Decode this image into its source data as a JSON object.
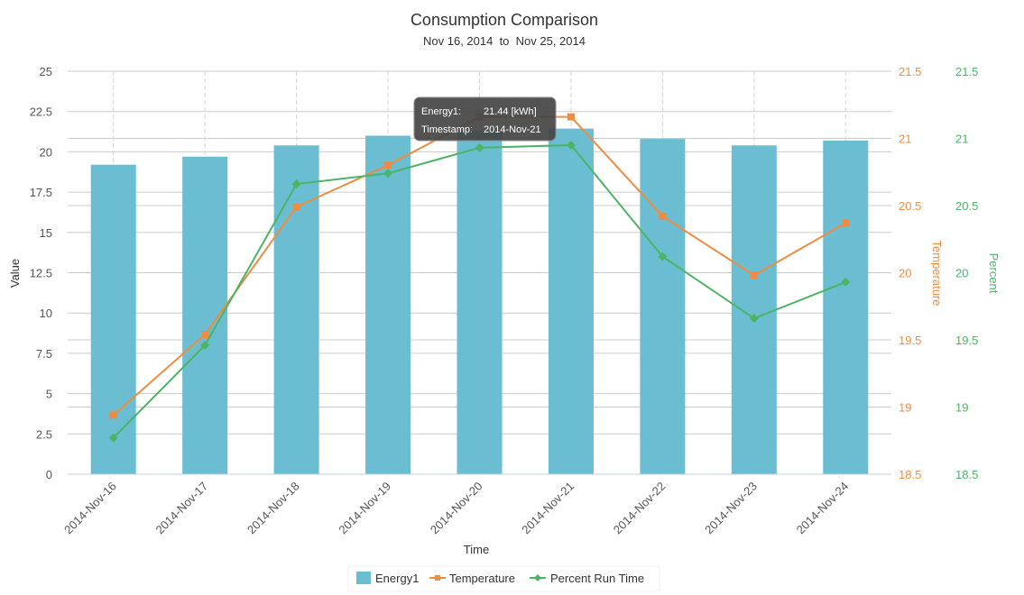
{
  "chart_data": {
    "type": "bar",
    "title": "Consumption Comparison",
    "subtitle": "Nov 16, 2014  to  Nov 25, 2014",
    "xlabel": "Time",
    "ylabel": "Value",
    "y2label": "Temperature",
    "y3label": "Percent",
    "categories": [
      "2014-Nov-16",
      "2014-Nov-17",
      "2014-Nov-18",
      "2014-Nov-19",
      "2014-Nov-20",
      "2014-Nov-21",
      "2014-Nov-22",
      "2014-Nov-23",
      "2014-Nov-24"
    ],
    "ylim": [
      0,
      25
    ],
    "y_ticks": [
      "0",
      "2.5",
      "5",
      "7.5",
      "10",
      "12.5",
      "15",
      "17.5",
      "20",
      "22.5",
      "25"
    ],
    "y2lim": [
      18.5,
      21.5
    ],
    "y2_ticks": [
      "18.5",
      "19",
      "19.5",
      "20",
      "20.5",
      "21",
      "21.5"
    ],
    "y3lim": [
      18.5,
      21.5
    ],
    "y3_ticks": [
      "18.5",
      "19",
      "19.5",
      "20",
      "20.5",
      "21",
      "21.5"
    ],
    "series": [
      {
        "name": "Energy1",
        "type": "bar",
        "axis": "left",
        "color": "#6bbdd2",
        "values": [
          19.2,
          19.7,
          20.4,
          21.0,
          21.3,
          21.44,
          20.8,
          20.4,
          20.7
        ]
      },
      {
        "name": "Temperature",
        "type": "line",
        "axis": "right1",
        "color": "#ef8c42",
        "marker": "square",
        "values": [
          18.94,
          19.54,
          20.49,
          20.8,
          21.16,
          21.16,
          20.42,
          19.98,
          20.37
        ]
      },
      {
        "name": "Percent Run Time",
        "type": "line",
        "axis": "right2",
        "color": "#4cb565",
        "marker": "diamond",
        "values": [
          18.77,
          19.46,
          20.66,
          20.74,
          20.93,
          20.95,
          20.12,
          19.66,
          19.93
        ]
      }
    ],
    "grid": true,
    "legend": "bottom-center",
    "tooltip": {
      "row1_label": "Energy1:",
      "row1_value": "21.44 [kWh]",
      "row2_label": "Timestamp:",
      "row2_value": "2014-Nov-21"
    }
  }
}
